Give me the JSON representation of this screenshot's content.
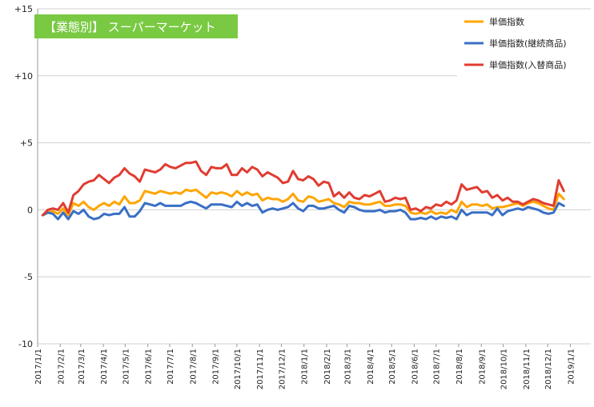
{
  "chart_data": {
    "type": "line",
    "title": "【業態別】 スーパーマーケット",
    "xlabel": "",
    "ylabel": "",
    "ylim": [
      -10,
      15
    ],
    "yticks": [
      15,
      10,
      5,
      0,
      -5,
      -10
    ],
    "ytick_labels": [
      "+15",
      "+10",
      "+5",
      "0",
      "-5",
      "-10"
    ],
    "xlim": [
      "2017/1/1",
      "2019/1/29"
    ],
    "xtick_labels": [
      "2017/1/1",
      "2017/2/1",
      "2017/3/1",
      "2017/4/1",
      "2017/5/1",
      "2017/6/1",
      "2017/7/1",
      "2017/8/1",
      "2017/9/1",
      "2017/10/1",
      "2017/11/1",
      "2017/12/1",
      "2018/1/1",
      "2018/2/1",
      "2018/3/1",
      "2018/4/1",
      "2018/5/1",
      "2018/6/1",
      "2018/7/1",
      "2018/8/1",
      "2018/9/1",
      "2018/10/1",
      "2018/11/1",
      "2018/12/1",
      "2019/1/1"
    ],
    "x_start": "2017/1/8",
    "x_step_days": 7,
    "grid": "horizontal",
    "legend_position": "top-right",
    "series": [
      {
        "name": "単価指数",
        "color": "#ffa500",
        "values": [
          -0.4,
          -0.2,
          -0.1,
          -0.3,
          0.1,
          -0.4,
          0.5,
          0.3,
          0.6,
          0.2,
          0.0,
          0.3,
          0.5,
          0.3,
          0.6,
          0.4,
          1.0,
          0.5,
          0.5,
          0.7,
          1.4,
          1.3,
          1.2,
          1.4,
          1.3,
          1.2,
          1.3,
          1.2,
          1.5,
          1.4,
          1.5,
          1.2,
          0.9,
          1.3,
          1.2,
          1.3,
          1.2,
          1.0,
          1.4,
          1.1,
          1.3,
          1.1,
          1.2,
          0.7,
          0.9,
          0.8,
          0.8,
          0.6,
          0.8,
          1.2,
          0.7,
          0.6,
          1.0,
          0.9,
          0.6,
          0.7,
          0.8,
          0.5,
          0.4,
          0.2,
          0.6,
          0.5,
          0.5,
          0.4,
          0.4,
          0.5,
          0.6,
          0.3,
          0.3,
          0.4,
          0.4,
          0.3,
          -0.2,
          -0.3,
          -0.2,
          -0.3,
          -0.1,
          -0.3,
          -0.2,
          -0.3,
          0.0,
          -0.2,
          0.6,
          0.2,
          0.4,
          0.4,
          0.3,
          0.4,
          0.1,
          0.2,
          0.2,
          0.3,
          0.4,
          0.5,
          0.3,
          0.5,
          0.6,
          0.5,
          0.3,
          0.1,
          0.0,
          1.2,
          0.8
        ]
      },
      {
        "name": "単価指数(継続商品)",
        "color": "#3a6fc4",
        "values": [
          -0.4,
          -0.2,
          -0.3,
          -0.7,
          -0.2,
          -0.7,
          -0.1,
          -0.3,
          0.0,
          -0.5,
          -0.7,
          -0.6,
          -0.3,
          -0.4,
          -0.3,
          -0.3,
          0.2,
          -0.5,
          -0.5,
          -0.1,
          0.5,
          0.4,
          0.3,
          0.5,
          0.3,
          0.3,
          0.3,
          0.3,
          0.5,
          0.6,
          0.5,
          0.3,
          0.1,
          0.4,
          0.4,
          0.4,
          0.3,
          0.2,
          0.6,
          0.3,
          0.5,
          0.3,
          0.4,
          -0.2,
          0.0,
          0.1,
          0.0,
          0.1,
          0.2,
          0.5,
          0.1,
          -0.1,
          0.3,
          0.3,
          0.1,
          0.1,
          0.2,
          0.3,
          0.0,
          -0.2,
          0.3,
          0.2,
          0.0,
          -0.1,
          -0.1,
          -0.1,
          0.0,
          -0.2,
          -0.1,
          -0.1,
          0.0,
          -0.2,
          -0.7,
          -0.7,
          -0.6,
          -0.7,
          -0.5,
          -0.7,
          -0.5,
          -0.6,
          -0.5,
          -0.7,
          0.0,
          -0.4,
          -0.2,
          -0.2,
          -0.2,
          -0.2,
          -0.4,
          0.1,
          -0.4,
          -0.1,
          0.0,
          0.1,
          0.0,
          0.2,
          0.1,
          0.0,
          -0.2,
          -0.3,
          -0.2,
          0.5,
          0.3
        ]
      },
      {
        "name": "単価指数(入替商品)",
        "color": "#e03c31",
        "values": [
          -0.4,
          0.0,
          0.1,
          0.0,
          0.5,
          -0.2,
          1.1,
          1.4,
          1.9,
          2.1,
          2.2,
          2.6,
          2.3,
          2.0,
          2.4,
          2.6,
          3.1,
          2.7,
          2.5,
          2.1,
          3.0,
          2.9,
          2.8,
          3.0,
          3.4,
          3.2,
          3.1,
          3.3,
          3.5,
          3.5,
          3.6,
          2.9,
          2.6,
          3.2,
          3.1,
          3.1,
          3.4,
          2.6,
          2.6,
          3.1,
          2.8,
          3.2,
          3.0,
          2.5,
          2.8,
          2.6,
          2.4,
          2.0,
          2.1,
          2.9,
          2.3,
          2.2,
          2.5,
          2.3,
          1.8,
          2.1,
          2.0,
          1.0,
          1.3,
          0.9,
          1.3,
          0.9,
          0.8,
          1.1,
          1.0,
          1.2,
          1.4,
          0.6,
          0.7,
          0.9,
          0.8,
          0.9,
          0.0,
          0.1,
          -0.1,
          0.2,
          0.1,
          0.4,
          0.3,
          0.6,
          0.4,
          0.7,
          1.9,
          1.5,
          1.6,
          1.7,
          1.3,
          1.4,
          0.9,
          1.1,
          0.7,
          0.9,
          0.6,
          0.6,
          0.4,
          0.6,
          0.8,
          0.7,
          0.5,
          0.4,
          0.3,
          2.2,
          1.4
        ]
      }
    ]
  }
}
